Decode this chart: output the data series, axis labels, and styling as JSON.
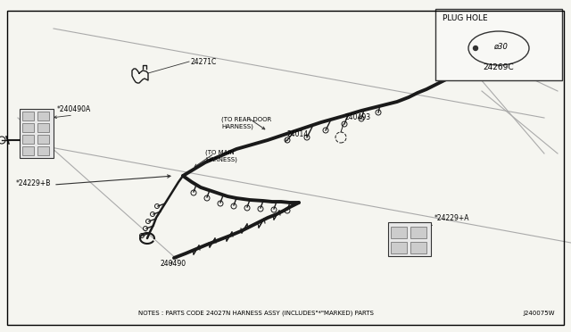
{
  "background_color": "#f5f5f0",
  "border_color": "#000000",
  "fig_width": 6.4,
  "fig_height": 3.72,
  "dpi": 100,
  "notes_text": "NOTES : PARTS CODE 24027N HARNESS ASSY (INCLUDES\"*\"MARKED) PARTS",
  "code_text": "J240075W",
  "plug_hole_label": "PLUG HOLE",
  "plug_hole_part": "24269C",
  "plug_hole_dim": "ø30",
  "text_color": "#000000",
  "harness_color": "#1a1a1a",
  "thin_color": "#333333",
  "font_size_label": 5.5,
  "font_size_notes": 5.0,
  "font_size_plug_title": 6.5,
  "font_size_plug_part": 6.0
}
